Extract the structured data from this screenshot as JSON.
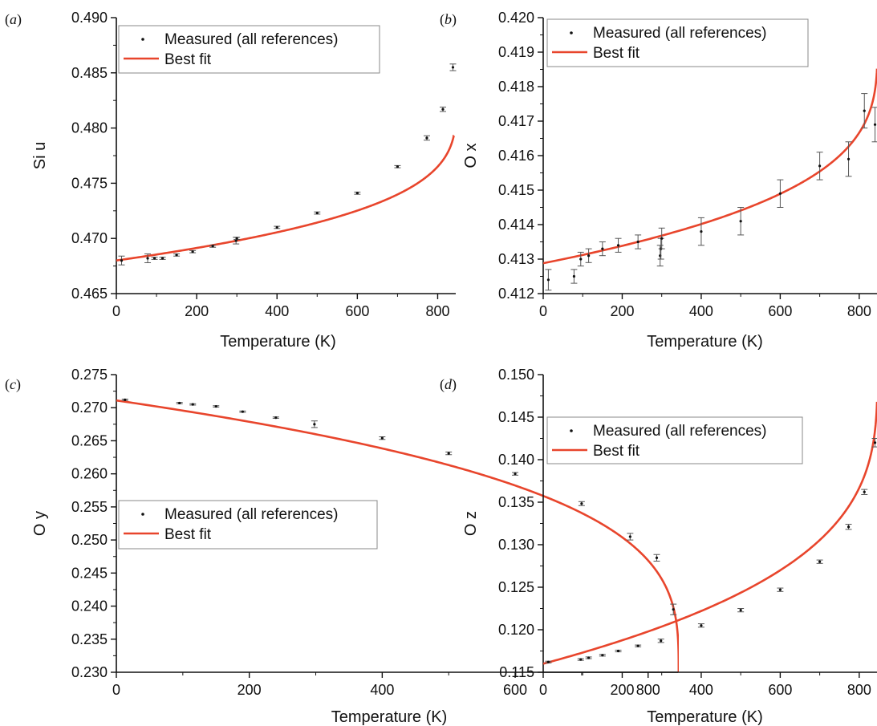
{
  "colors": {
    "fit": "#e8452c",
    "points": "#111111",
    "errorbars": "#555555"
  },
  "chart_data": [
    {
      "panel_label": "a",
      "type": "scatter",
      "xlabel": "Temperature (K)",
      "ylabel": "Si u",
      "xlim": [
        0,
        845
      ],
      "ylim": [
        0.465,
        0.49
      ],
      "xticks": [
        0,
        200,
        400,
        600,
        800
      ],
      "yticks": [
        0.465,
        0.47,
        0.475,
        0.48,
        0.485,
        0.49
      ],
      "ytick_labels": [
        "0.465",
        "0.470",
        "0.475",
        "0.480",
        "0.485",
        "0.490"
      ],
      "grid": false,
      "legend": {
        "placement": "top-left",
        "entries": [
          "Measured (all references)",
          "Best fit"
        ]
      },
      "series": [
        {
          "name": "Measured (all references)",
          "points": [
            {
              "x": 13,
              "y": 0.468,
              "err": 0.0004
            },
            {
              "x": 78,
              "y": 0.4682,
              "err": 0.0004
            },
            {
              "x": 95,
              "y": 0.4682,
              "err": 0.0001
            },
            {
              "x": 115,
              "y": 0.4682,
              "err": 0.0001
            },
            {
              "x": 150,
              "y": 0.4685,
              "err": 0.0001
            },
            {
              "x": 190,
              "y": 0.4688,
              "err": 0.0001
            },
            {
              "x": 240,
              "y": 0.4693,
              "err": 0.0001
            },
            {
              "x": 298,
              "y": 0.4698,
              "err": 0.0003
            },
            {
              "x": 300,
              "y": 0.47,
              "err": 0.0001
            },
            {
              "x": 400,
              "y": 0.471,
              "err": 0.0001
            },
            {
              "x": 500,
              "y": 0.4723,
              "err": 0.0001
            },
            {
              "x": 600,
              "y": 0.4741,
              "err": 0.0001
            },
            {
              "x": 700,
              "y": 0.4765,
              "err": 0.0001
            },
            {
              "x": 773,
              "y": 0.4791,
              "err": 0.0002
            },
            {
              "x": 813,
              "y": 0.4817,
              "err": 0.0002
            },
            {
              "x": 838,
              "y": 0.4855,
              "err": 0.0003
            }
          ]
        },
        {
          "name": "Best fit",
          "fit": {
            "y0": 0.468,
            "a": 0.0146,
            "tc": 846,
            "p": 0.3,
            "tstart": 0,
            "tend": 840
          }
        }
      ]
    },
    {
      "panel_label": "b",
      "type": "scatter",
      "xlabel": "Temperature (K)",
      "ylabel": "O x",
      "xlim": [
        0,
        845
      ],
      "ylim": [
        0.412,
        0.42
      ],
      "xticks": [
        0,
        200,
        400,
        600,
        800
      ],
      "yticks": [
        0.412,
        0.413,
        0.414,
        0.415,
        0.416,
        0.417,
        0.418,
        0.419,
        0.42
      ],
      "ytick_labels": [
        "0.412",
        "0.413",
        "0.414",
        "0.415",
        "0.416",
        "0.417",
        "0.418",
        "0.419",
        "0.420"
      ],
      "grid": false,
      "legend": {
        "placement": "top-left",
        "entries": [
          "Measured (all references)",
          "Best fit"
        ]
      },
      "series": [
        {
          "name": "Measured (all references)",
          "points": [
            {
              "x": 13,
              "y": 0.4124,
              "err": 0.0003
            },
            {
              "x": 78,
              "y": 0.4125,
              "err": 0.0002
            },
            {
              "x": 95,
              "y": 0.413,
              "err": 0.0002
            },
            {
              "x": 115,
              "y": 0.4131,
              "err": 0.0002
            },
            {
              "x": 150,
              "y": 0.4133,
              "err": 0.0002
            },
            {
              "x": 190,
              "y": 0.4134,
              "err": 0.0002
            },
            {
              "x": 240,
              "y": 0.4135,
              "err": 0.0002
            },
            {
              "x": 296,
              "y": 0.4131,
              "err": 0.0003
            },
            {
              "x": 298,
              "y": 0.4133,
              "err": 0.0003
            },
            {
              "x": 300,
              "y": 0.4136,
              "err": 0.0003
            },
            {
              "x": 400,
              "y": 0.4138,
              "err": 0.0004
            },
            {
              "x": 500,
              "y": 0.4141,
              "err": 0.0004
            },
            {
              "x": 600,
              "y": 0.4149,
              "err": 0.0004
            },
            {
              "x": 700,
              "y": 0.4157,
              "err": 0.0004
            },
            {
              "x": 773,
              "y": 0.4159,
              "err": 0.0005
            },
            {
              "x": 813,
              "y": 0.4173,
              "err": 0.0005
            },
            {
              "x": 840,
              "y": 0.4169,
              "err": 0.0005
            }
          ]
        },
        {
          "name": "Best fit",
          "fit": {
            "y0": 0.41288,
            "a": 0.0065,
            "tc": 846,
            "p": 0.3,
            "tstart": 0,
            "tend": 845
          }
        }
      ]
    },
    {
      "panel_label": "c",
      "type": "scatter",
      "xlabel": "Temperature (K)",
      "ylabel": "O y",
      "xlim": [
        0,
        845
      ],
      "ylim": [
        0.23,
        0.275
      ],
      "xticks": [
        0,
        200,
        400,
        600,
        800
      ],
      "yticks": [
        0.23,
        0.235,
        0.24,
        0.245,
        0.25,
        0.255,
        0.26,
        0.265,
        0.27,
        0.275
      ],
      "ytick_labels": [
        "0.230",
        "0.235",
        "0.240",
        "0.245",
        "0.250",
        "0.255",
        "0.260",
        "0.265",
        "0.270",
        "0.275"
      ],
      "grid": false,
      "legend": {
        "placement": "center-left",
        "entries": [
          "Measured (all references)",
          "Best fit"
        ]
      },
      "series": [
        {
          "name": "Measured (all references)",
          "points": [
            {
              "x": 13,
              "y": 0.2712,
              "err": 0.0001
            },
            {
              "x": 95,
              "y": 0.2707,
              "err": 0.0001
            },
            {
              "x": 115,
              "y": 0.2705,
              "err": 0.0001
            },
            {
              "x": 150,
              "y": 0.2702,
              "err": 0.0001
            },
            {
              "x": 190,
              "y": 0.2694,
              "err": 0.0001
            },
            {
              "x": 240,
              "y": 0.2685,
              "err": 0.0001
            },
            {
              "x": 298,
              "y": 0.2675,
              "err": 0.0005
            },
            {
              "x": 400,
              "y": 0.2654,
              "err": 0.0002
            },
            {
              "x": 500,
              "y": 0.2631,
              "err": 0.0002
            },
            {
              "x": 600,
              "y": 0.26,
              "err": 0.0002
            },
            {
              "x": 700,
              "y": 0.2555,
              "err": 0.0003
            },
            {
              "x": 773,
              "y": 0.2505,
              "err": 0.0005
            },
            {
              "x": 813,
              "y": 0.2473,
              "err": 0.0005
            },
            {
              "x": 838,
              "y": 0.2395,
              "err": 0.0008
            }
          ]
        },
        {
          "name": "Best fit",
          "fit": {
            "y0": 0.2711,
            "a": -0.04154,
            "tc": 846,
            "p": 0.3,
            "tstart": 0,
            "tend": 846
          }
        }
      ]
    },
    {
      "panel_label": "d",
      "type": "scatter",
      "xlabel": "Temperature (K)",
      "ylabel": "O z",
      "xlim": [
        0,
        845
      ],
      "ylim": [
        0.115,
        0.15
      ],
      "xticks": [
        0,
        200,
        400,
        600,
        800
      ],
      "yticks": [
        0.115,
        0.12,
        0.125,
        0.13,
        0.135,
        0.14,
        0.145,
        0.15
      ],
      "ytick_labels": [
        "0.115",
        "0.120",
        "0.125",
        "0.130",
        "0.135",
        "0.140",
        "0.145",
        "0.150"
      ],
      "grid": false,
      "legend": {
        "placement": "top-left",
        "entries": [
          "Measured (all references)",
          "Best fit"
        ]
      },
      "series": [
        {
          "name": "Measured (all references)",
          "points": [
            {
              "x": 13,
              "y": 0.1162,
              "err": 0.0001
            },
            {
              "x": 95,
              "y": 0.1165,
              "err": 0.0001
            },
            {
              "x": 115,
              "y": 0.1167,
              "err": 0.0001
            },
            {
              "x": 150,
              "y": 0.117,
              "err": 0.0001
            },
            {
              "x": 190,
              "y": 0.1175,
              "err": 0.0001
            },
            {
              "x": 240,
              "y": 0.1181,
              "err": 0.0001
            },
            {
              "x": 298,
              "y": 0.1187,
              "err": 0.0002
            },
            {
              "x": 400,
              "y": 0.1205,
              "err": 0.0002
            },
            {
              "x": 500,
              "y": 0.1223,
              "err": 0.0002
            },
            {
              "x": 600,
              "y": 0.1247,
              "err": 0.0002
            },
            {
              "x": 700,
              "y": 0.128,
              "err": 0.0002
            },
            {
              "x": 773,
              "y": 0.1321,
              "err": 0.0003
            },
            {
              "x": 813,
              "y": 0.1362,
              "err": 0.0003
            },
            {
              "x": 840,
              "y": 0.142,
              "err": 0.0005
            }
          ]
        },
        {
          "name": "Best fit",
          "fit": {
            "y0": 0.116,
            "a": 0.0355,
            "tc": 846,
            "p": 0.3,
            "tstart": 0,
            "tend": 845
          }
        }
      ]
    }
  ]
}
